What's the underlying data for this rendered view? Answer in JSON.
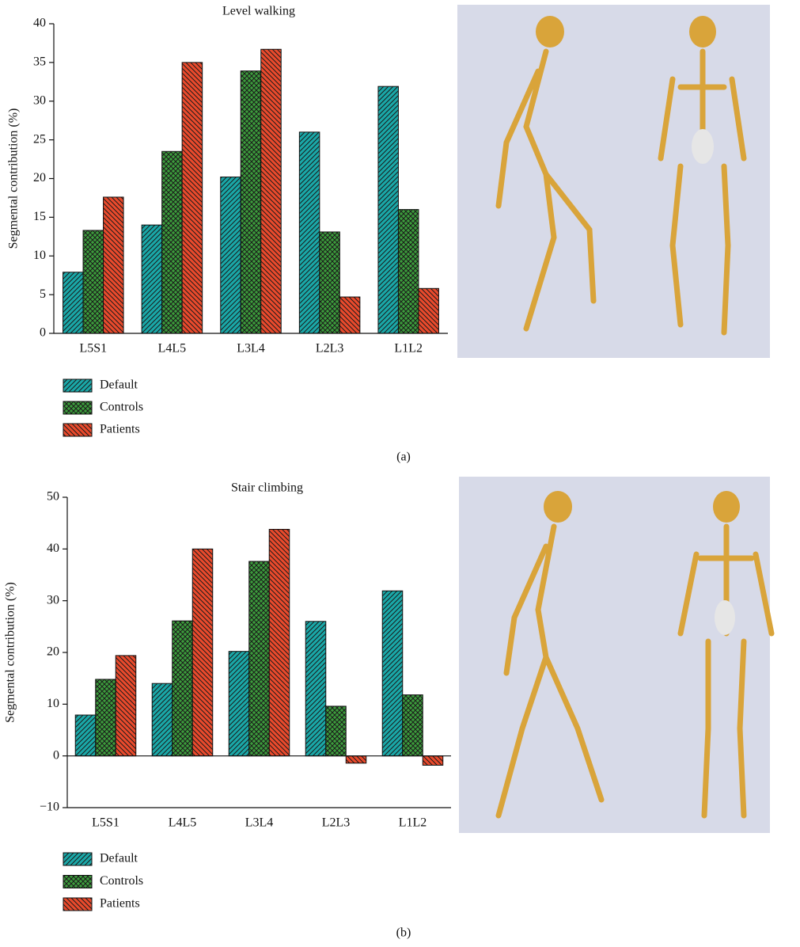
{
  "chart_data": [
    {
      "type": "bar",
      "title": "Level walking",
      "y_label": "Segmental contribution (%)",
      "label": "(a)",
      "categories": [
        "L5S1",
        "L4L5",
        "L3L4",
        "L2L3",
        "L1L2"
      ],
      "series": [
        {
          "name": "Default",
          "color": "#1aa8a8",
          "hatch": "forward",
          "values": [
            7.9,
            14.0,
            20.2,
            26.0,
            31.9
          ]
        },
        {
          "name": "Controls",
          "color": "#3c9c3c",
          "hatch": "cross",
          "values": [
            13.3,
            23.5,
            33.9,
            13.1,
            16.0
          ]
        },
        {
          "name": "Patients",
          "color": "#ea4a2c",
          "hatch": "back",
          "values": [
            17.6,
            35.0,
            36.7,
            4.7,
            5.8
          ]
        }
      ],
      "ylim": [
        0,
        40
      ],
      "yticks": [
        0,
        5,
        10,
        15,
        20,
        25,
        30,
        35,
        40
      ]
    },
    {
      "type": "bar",
      "title": "Stair climbing",
      "y_label": "Segmental contribution (%)",
      "label": "(b)",
      "categories": [
        "L5S1",
        "L4L5",
        "L3L4",
        "L2L3",
        "L1L2"
      ],
      "series": [
        {
          "name": "Default",
          "color": "#1aa8a8",
          "hatch": "forward",
          "values": [
            7.9,
            14.0,
            20.2,
            26.0,
            31.9
          ]
        },
        {
          "name": "Controls",
          "color": "#3c9c3c",
          "hatch": "cross",
          "values": [
            14.8,
            26.1,
            37.6,
            9.6,
            11.8
          ]
        },
        {
          "name": "Patients",
          "color": "#ea4a2c",
          "hatch": "back",
          "values": [
            19.4,
            40.0,
            43.8,
            -1.4,
            -1.8
          ]
        }
      ],
      "ylim": [
        -10,
        50
      ],
      "yticks": [
        {
          "value": -10,
          "label": "−10"
        },
        0,
        10,
        20,
        30,
        40,
        50
      ]
    }
  ]
}
